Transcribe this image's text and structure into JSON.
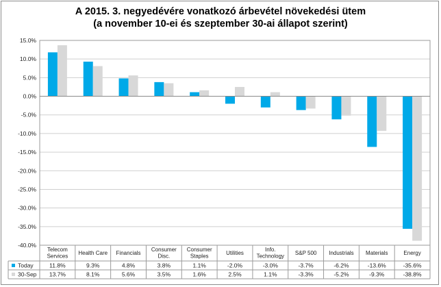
{
  "chart_data": {
    "type": "bar",
    "title_line1": "A 2015. 3. negyedévére vonatkozó  árbevétel növekedési ütem",
    "title_line2": "(a november 10-ei és szeptember 30-ai állapot szerint)",
    "ylim": [
      -40,
      15
    ],
    "ytick_step": 5,
    "ytick_labels": [
      "15.0%",
      "10.0%",
      "5.0%",
      "0.0%",
      "-5.0%",
      "-10.0%",
      "-15.0%",
      "-20.0%",
      "-25.0%",
      "-30.0%",
      "-35.0%",
      "-40.0%"
    ],
    "grid": true,
    "categories": [
      [
        "Telecom",
        "Services"
      ],
      [
        "Health Care"
      ],
      [
        "Financials"
      ],
      [
        "Consumer",
        "Disc."
      ],
      [
        "Consumer",
        "Staples"
      ],
      [
        "Utilities"
      ],
      [
        "Info.",
        "Technology"
      ],
      [
        "S&P 500"
      ],
      [
        "Industrials"
      ],
      [
        "Materials"
      ],
      [
        "Energy"
      ]
    ],
    "series": [
      {
        "name": "Today",
        "color": "#00a9e8",
        "values": [
          11.8,
          9.3,
          4.8,
          3.8,
          1.1,
          -2.0,
          -3.0,
          -3.7,
          -6.2,
          -13.6,
          -35.6
        ],
        "labels": [
          "11.8%",
          "9.3%",
          "4.8%",
          "3.8%",
          "1.1%",
          "-2.0%",
          "-3.0%",
          "-3.7%",
          "-6.2%",
          "-13.6%",
          "-35.6%"
        ]
      },
      {
        "name": "30-Sep",
        "color": "#d8d8d8",
        "values": [
          13.7,
          8.1,
          5.6,
          3.5,
          1.6,
          2.5,
          1.1,
          -3.3,
          -5.2,
          -9.3,
          -38.8
        ],
        "labels": [
          "13.7%",
          "8.1%",
          "5.6%",
          "3.5%",
          "1.6%",
          "2.5%",
          "1.1%",
          "-3.3%",
          "-5.2%",
          "-9.3%",
          "-38.8%"
        ]
      }
    ]
  }
}
